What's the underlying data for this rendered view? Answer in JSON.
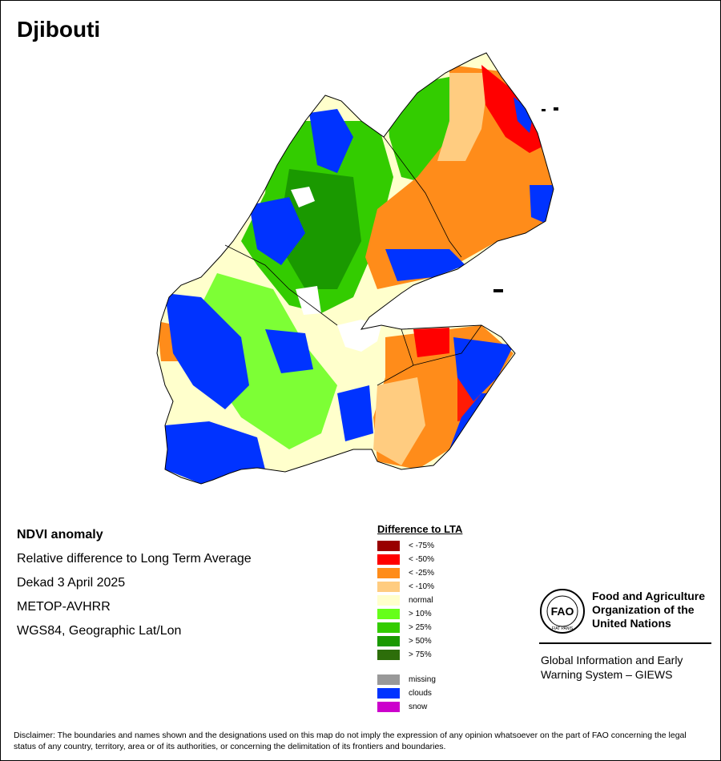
{
  "map": {
    "title": "Djibouti"
  },
  "info": {
    "line1": "NDVI anomaly",
    "line2": "Relative difference to Long Term Average",
    "line3": "Dekad 3 April 2025",
    "line4": "METOP-AVHRR",
    "line5": "WGS84, Geographic Lat/Lon"
  },
  "legend": {
    "title": "Difference to LTA",
    "items": [
      {
        "label": "< -75%",
        "color": "#990000"
      },
      {
        "label": "< -50%",
        "color": "#ff0000"
      },
      {
        "label": "< -25%",
        "color": "#ff8c1a"
      },
      {
        "label": "< -10%",
        "color": "#ffcc80"
      },
      {
        "label": "normal",
        "color": "#ffffcc"
      },
      {
        "label": "> 10%",
        "color": "#66ff1a"
      },
      {
        "label": "> 25%",
        "color": "#33cc00"
      },
      {
        "label": "> 50%",
        "color": "#1a9900"
      },
      {
        "label": "> 75%",
        "color": "#2d6e0a"
      }
    ],
    "extra": [
      {
        "label": "missing",
        "color": "#999999"
      },
      {
        "label": "clouds",
        "color": "#0033ff"
      },
      {
        "label": "snow",
        "color": "#cc00cc"
      }
    ]
  },
  "fao": {
    "org_name": "Food and Agriculture Organization of the United Nations",
    "logo_text": "FAO",
    "logo_motto": "FIAT PANIS",
    "giews": "Global Information and Early Warning System – GIEWS"
  },
  "disclaimer": "Disclaimer: The boundaries and names shown and the designations used on this map do not imply the expression of any opinion whatsoever on the part of FAO concerning the legal status of any country, territory, area or of its authorities, or concerning the delimitation of its frontiers and boundaries."
}
